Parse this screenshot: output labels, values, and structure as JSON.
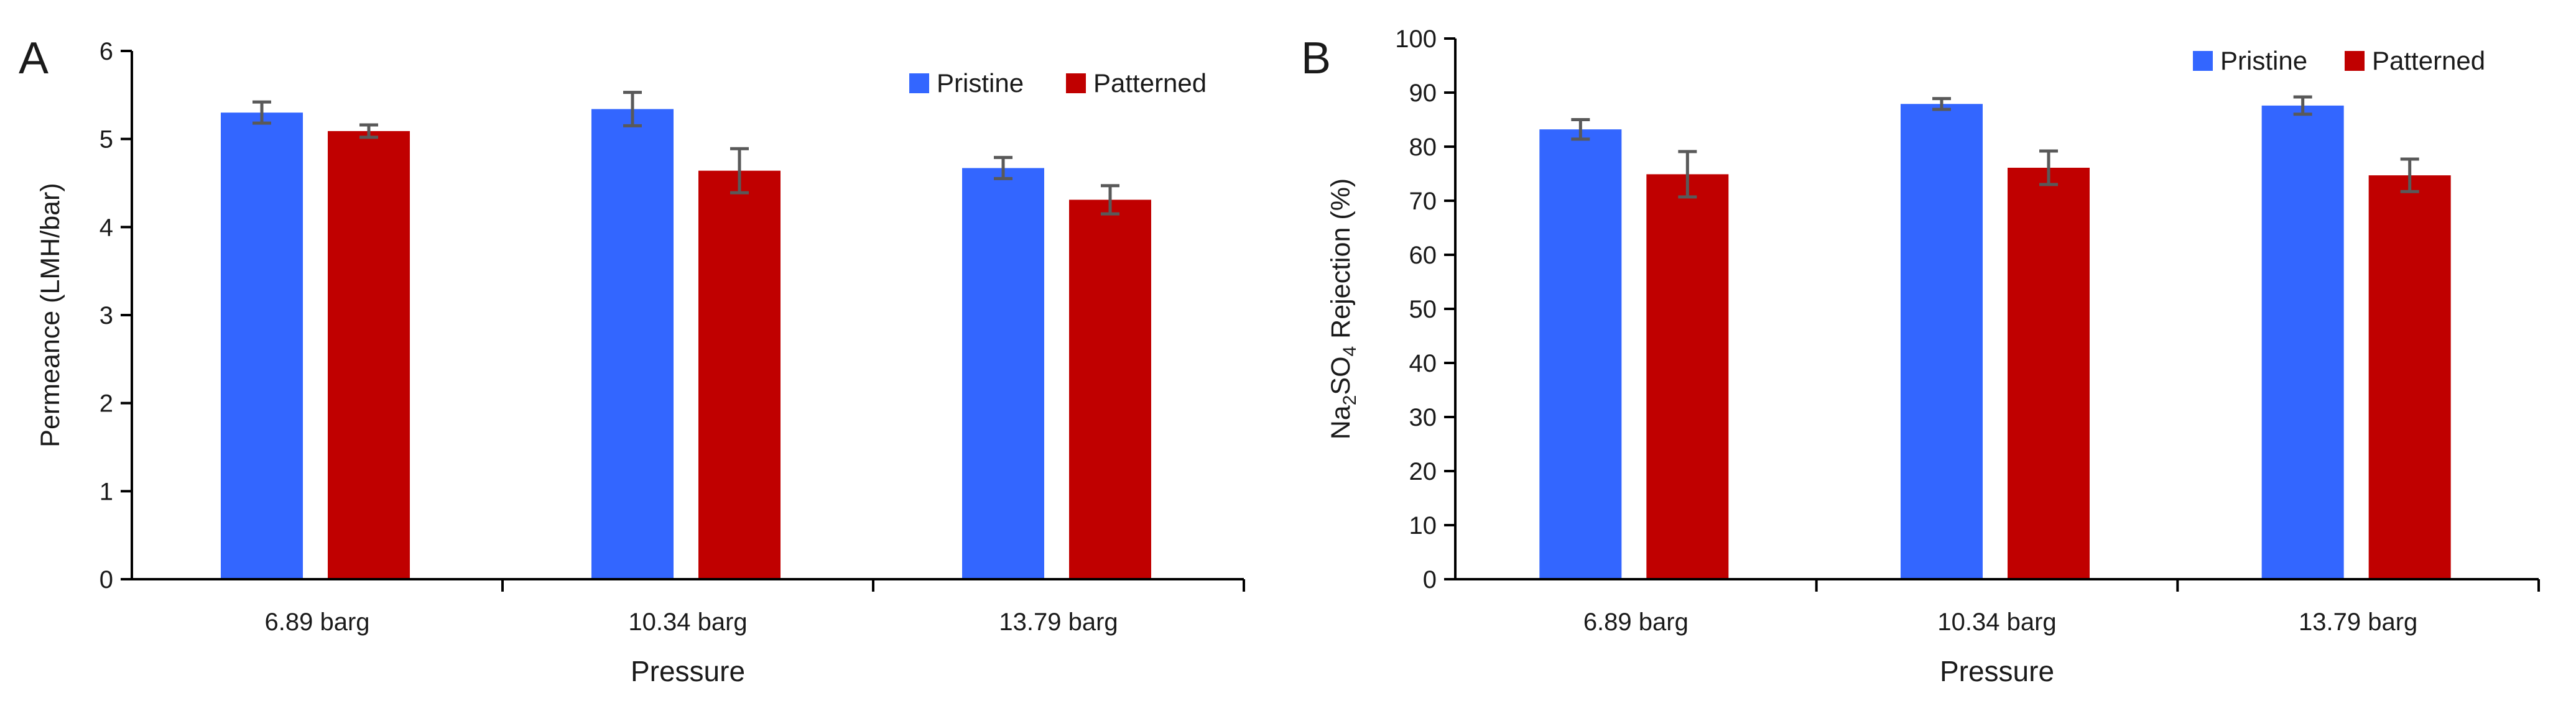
{
  "colors": {
    "pristine": "#3366ff",
    "patterned": "#c00000",
    "axis": "#000000",
    "error_bar": "#595959"
  },
  "chart_data": [
    {
      "id": "A",
      "panel_label": "A",
      "type": "bar",
      "title": "",
      "xlabel": "Pressure",
      "ylabel": "Permeance (LMH/bar)",
      "ylim": [
        0,
        6
      ],
      "yticks": [
        0,
        1,
        2,
        3,
        4,
        5,
        6
      ],
      "grid": false,
      "legend_position": "top-right",
      "categories": [
        "6.89 barg",
        "10.34 barg",
        "13.79 barg"
      ],
      "series": [
        {
          "name": "Pristine",
          "color_key": "pristine",
          "values": [
            5.3,
            5.34,
            4.67
          ],
          "errors": [
            0.12,
            0.19,
            0.12
          ]
        },
        {
          "name": "Patterned",
          "color_key": "patterned",
          "values": [
            5.09,
            4.64,
            4.31
          ],
          "errors": [
            0.07,
            0.25,
            0.16
          ]
        }
      ]
    },
    {
      "id": "B",
      "panel_label": "B",
      "type": "bar",
      "title": "",
      "xlabel": "Pressure",
      "ylabel": "Na2SO4 Rejection (%)",
      "ylabel_parts": [
        {
          "text": "Na",
          "sub": false
        },
        {
          "text": "2",
          "sub": true
        },
        {
          "text": "SO",
          "sub": false
        },
        {
          "text": "4",
          "sub": true
        },
        {
          "text": " Rejection (%)",
          "sub": false
        }
      ],
      "ylim": [
        0,
        100
      ],
      "yticks": [
        0,
        10,
        20,
        30,
        40,
        50,
        60,
        70,
        80,
        90,
        100
      ],
      "grid": false,
      "legend_position": "top-right",
      "categories": [
        "6.89 barg",
        "10.34 barg",
        "13.79 barg"
      ],
      "series": [
        {
          "name": "Pristine",
          "color_key": "pristine",
          "values": [
            83.2,
            87.9,
            87.6
          ],
          "errors": [
            1.8,
            1.0,
            1.6
          ]
        },
        {
          "name": "Patterned",
          "color_key": "patterned",
          "values": [
            74.9,
            76.1,
            74.7
          ],
          "errors": [
            4.2,
            3.1,
            3.0
          ]
        }
      ]
    }
  ]
}
